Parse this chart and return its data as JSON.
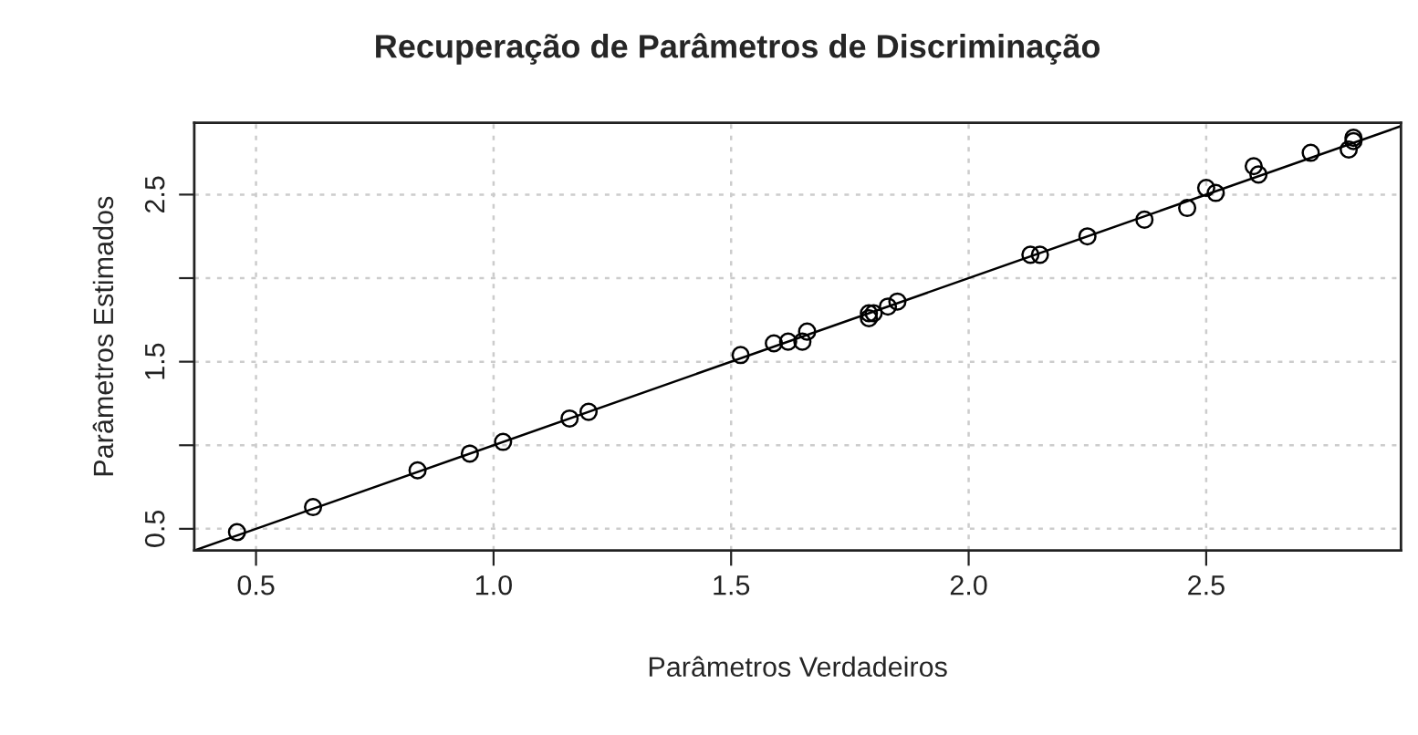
{
  "chart_data": {
    "type": "scatter",
    "title": "Recuperação de Parâmetros de Discriminação",
    "xlabel": "Parâmetros Verdadeiros",
    "ylabel": "Parâmetros Estimados",
    "x": [
      0.46,
      0.62,
      0.84,
      0.95,
      1.02,
      1.16,
      1.2,
      1.52,
      1.59,
      1.62,
      1.65,
      1.66,
      1.79,
      1.79,
      1.8,
      1.83,
      1.85,
      2.13,
      2.15,
      2.25,
      2.37,
      2.46,
      2.5,
      2.52,
      2.6,
      2.61,
      2.72,
      2.8,
      2.81,
      2.81
    ],
    "series": [
      {
        "color": "#000000",
        "marker": "circle",
        "values": [
          0.48,
          0.63,
          0.85,
          0.95,
          1.02,
          1.16,
          1.2,
          1.54,
          1.61,
          1.62,
          1.62,
          1.68,
          1.76,
          1.79,
          1.79,
          1.83,
          1.86,
          2.14,
          2.14,
          2.25,
          2.35,
          2.42,
          2.54,
          2.51,
          2.67,
          2.62,
          2.75,
          2.77,
          2.84,
          2.82
        ]
      },
      {
        "type": "line",
        "color": "#000000",
        "line_style": "solid",
        "x": [
          0.37,
          2.91
        ],
        "values": [
          0.37,
          2.91
        ]
      }
    ],
    "xlim": [
      0.37,
      2.91
    ],
    "ylim": [
      0.37,
      2.93
    ],
    "xticks": [
      0.5,
      {
        "value": 1.0,
        "label": "1.0"
      },
      1.5,
      {
        "value": 2.0,
        "label": "2.0"
      },
      2.5
    ],
    "yticks": [
      0.5,
      {
        "value": 1.0,
        "label": null
      },
      1.5,
      {
        "value": 2.0,
        "label": null
      },
      2.5
    ],
    "grid": true
  }
}
